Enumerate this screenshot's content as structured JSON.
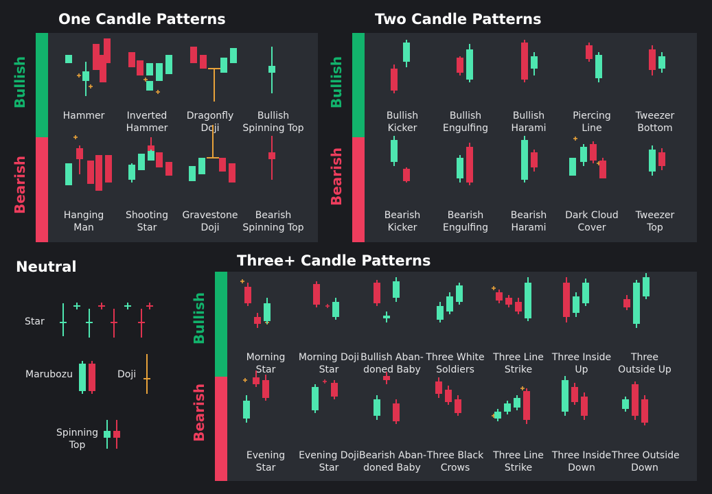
{
  "colors": {
    "bull": "#4ee6b0",
    "bear": "#e0334f",
    "doji": "#e8a23a",
    "green_band": "#12b36c",
    "red_band": "#ee3d5d",
    "bg": "#1b1c20",
    "panel": "#2a2d33"
  },
  "sections": {
    "one": {
      "title": "One Candle Patterns",
      "bullish_label": "Bullish",
      "bearish_label": "Bearish",
      "bullish": [
        {
          "name": "Hammer"
        },
        {
          "name": "Inverted\nHammer"
        },
        {
          "name": "Dragonfly\nDoji"
        },
        {
          "name": "Bullish\nSpinning Top"
        }
      ],
      "bearish": [
        {
          "name": "Hanging\nMan"
        },
        {
          "name": "Shooting\nStar"
        },
        {
          "name": "Gravestone\nDoji"
        },
        {
          "name": "Bearish\nSpinning Top"
        }
      ]
    },
    "two": {
      "title": "Two Candle Patterns",
      "bullish_label": "Bullish",
      "bearish_label": "Bearish",
      "bullish": [
        {
          "name": "Bullish\nKicker"
        },
        {
          "name": "Bullish\nEngulfing"
        },
        {
          "name": "Bullish\nHarami"
        },
        {
          "name": "Piercing\nLine"
        },
        {
          "name": "Tweezer\nBottom"
        }
      ],
      "bearish": [
        {
          "name": "Bearish\nKicker"
        },
        {
          "name": "Bearish\nEngulfing"
        },
        {
          "name": "Bearish\nHarami"
        },
        {
          "name": "Dark Cloud\nCover"
        },
        {
          "name": "Tweezer\nTop"
        }
      ]
    },
    "three": {
      "title": "Three+ Candle Patterns",
      "bullish_label": "Bullish",
      "bearish_label": "Bearish",
      "bullish": [
        {
          "name": "Morning\nStar"
        },
        {
          "name": "Morning Doji\nStar"
        },
        {
          "name": "Bullish Aban-\ndoned Baby"
        },
        {
          "name": "Three White\nSoldiers"
        },
        {
          "name": "Three Line\nStrike"
        },
        {
          "name": "Three Inside\nUp"
        },
        {
          "name": "Three\nOutside Up"
        }
      ],
      "bearish": [
        {
          "name": "Evening\nStar"
        },
        {
          "name": "Evening Doji\nStar"
        },
        {
          "name": "Bearish Aban-\ndoned Baby"
        },
        {
          "name": "Three Black\nCrows"
        },
        {
          "name": "Three Line\nStrike"
        },
        {
          "name": "Three Inside\nDown"
        },
        {
          "name": "Three Outside\nDown"
        }
      ]
    },
    "neutral": {
      "title": "Neutral",
      "star": "Star",
      "marubozu": "Marubozu",
      "doji": "Doji",
      "spinning_top": "Spinning\nTop"
    }
  }
}
